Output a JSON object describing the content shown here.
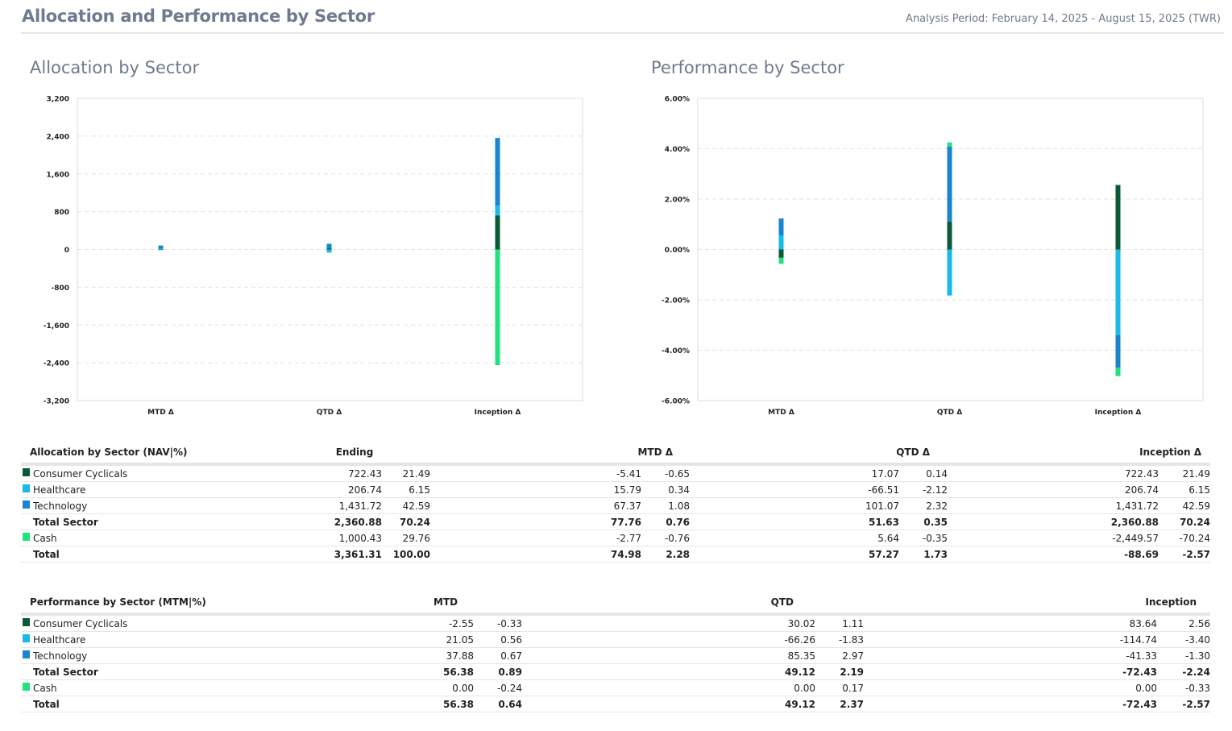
{
  "header": {
    "title": "Allocation and Performance by Sector",
    "analysis_period": "Analysis Period: February 14, 2025 - August 15, 2025 (TWR)"
  },
  "colors": {
    "consumer_cyclicals": "#0b5a37",
    "healthcare": "#1ab9ea",
    "technology": "#1a85cf",
    "cash": "#22e27d",
    "axis_text": "#222222",
    "grid": "#e2e2e2",
    "title": "#6f7a8e"
  },
  "chart_data": [
    {
      "id": "allocation",
      "type": "bar",
      "stacked": true,
      "title": "Allocation by Sector",
      "categories": [
        "MTD Δ",
        "QTD Δ",
        "Inception Δ"
      ],
      "yticks": [
        "3,200",
        "2,400",
        "1,600",
        "800",
        "0",
        "-800",
        "-1,600",
        "-2,400",
        "-3,200"
      ],
      "ylim": [
        -3200,
        3200
      ],
      "xlabel": "",
      "ylabel": "",
      "grid": true,
      "series": [
        {
          "name": "Consumer Cyclicals",
          "color": "#0b5a37",
          "values": [
            -5.41,
            17.07,
            722.43
          ]
        },
        {
          "name": "Healthcare",
          "color": "#1ab9ea",
          "values": [
            15.79,
            -66.51,
            206.74
          ]
        },
        {
          "name": "Technology",
          "color": "#1a85cf",
          "values": [
            67.37,
            101.07,
            1431.72
          ]
        },
        {
          "name": "Cash",
          "color": "#22e27d",
          "values": [
            -2.77,
            5.64,
            -2449.57
          ]
        }
      ]
    },
    {
      "id": "performance",
      "type": "bar",
      "stacked": true,
      "title": "Performance by Sector",
      "categories": [
        "MTD Δ",
        "QTD Δ",
        "Inception Δ"
      ],
      "yticks": [
        "6.00%",
        "4.00%",
        "2.00%",
        "0.00%",
        "-2.00%",
        "-4.00%",
        "-6.00%"
      ],
      "ylim": [
        -6,
        6
      ],
      "xlabel": "",
      "ylabel": "",
      "grid": true,
      "series": [
        {
          "name": "Consumer Cyclicals",
          "color": "#0b5a37",
          "values": [
            -0.33,
            1.11,
            2.56
          ]
        },
        {
          "name": "Healthcare",
          "color": "#1ab9ea",
          "values": [
            0.56,
            -1.83,
            -3.4
          ]
        },
        {
          "name": "Technology",
          "color": "#1a85cf",
          "values": [
            0.67,
            2.97,
            -1.3
          ]
        },
        {
          "name": "Cash",
          "color": "#22e27d",
          "values": [
            -0.24,
            0.17,
            -0.33
          ]
        }
      ]
    }
  ],
  "allocation_table": {
    "headers": [
      "Allocation by Sector (NAV|%)",
      "Ending",
      "MTD Δ",
      "QTD Δ",
      "Inception Δ"
    ],
    "rows": [
      {
        "label": "Consumer Cyclicals",
        "swatch": "#0b5a37",
        "bold": false,
        "cells": [
          "722.43",
          "21.49",
          "-5.41",
          "-0.65",
          "17.07",
          "0.14",
          "722.43",
          "21.49"
        ]
      },
      {
        "label": "Healthcare",
        "swatch": "#1ab9ea",
        "bold": false,
        "cells": [
          "206.74",
          "6.15",
          "15.79",
          "0.34",
          "-66.51",
          "-2.12",
          "206.74",
          "6.15"
        ]
      },
      {
        "label": "Technology",
        "swatch": "#1a85cf",
        "bold": false,
        "cells": [
          "1,431.72",
          "42.59",
          "67.37",
          "1.08",
          "101.07",
          "2.32",
          "1,431.72",
          "42.59"
        ]
      },
      {
        "label": "Total Sector",
        "swatch": "",
        "bold": true,
        "cells": [
          "2,360.88",
          "70.24",
          "77.76",
          "0.76",
          "51.63",
          "0.35",
          "2,360.88",
          "70.24"
        ]
      },
      {
        "label": "Cash",
        "swatch": "#22e27d",
        "bold": false,
        "cells": [
          "1,000.43",
          "29.76",
          "-2.77",
          "-0.76",
          "5.64",
          "-0.35",
          "-2,449.57",
          "-70.24"
        ]
      },
      {
        "label": "Total",
        "swatch": "",
        "bold": true,
        "cells": [
          "3,361.31",
          "100.00",
          "74.98",
          "2.28",
          "57.27",
          "1.73",
          "-88.69",
          "-2.57"
        ]
      }
    ]
  },
  "performance_table": {
    "headers": [
      "Performance by Sector (MTM|%)",
      "MTD",
      "QTD",
      "Inception"
    ],
    "rows": [
      {
        "label": "Consumer Cyclicals",
        "swatch": "#0b5a37",
        "bold": false,
        "cells": [
          "-2.55",
          "-0.33",
          "30.02",
          "1.11",
          "83.64",
          "2.56"
        ]
      },
      {
        "label": "Healthcare",
        "swatch": "#1ab9ea",
        "bold": false,
        "cells": [
          "21.05",
          "0.56",
          "-66.26",
          "-1.83",
          "-114.74",
          "-3.40"
        ]
      },
      {
        "label": "Technology",
        "swatch": "#1a85cf",
        "bold": false,
        "cells": [
          "37.88",
          "0.67",
          "85.35",
          "2.97",
          "-41.33",
          "-1.30"
        ]
      },
      {
        "label": "Total Sector",
        "swatch": "",
        "bold": true,
        "cells": [
          "56.38",
          "0.89",
          "49.12",
          "2.19",
          "-72.43",
          "-2.24"
        ]
      },
      {
        "label": "Cash",
        "swatch": "#22e27d",
        "bold": false,
        "cells": [
          "0.00",
          "-0.24",
          "0.00",
          "0.17",
          "0.00",
          "-0.33"
        ]
      },
      {
        "label": "Total",
        "swatch": "",
        "bold": true,
        "cells": [
          "56.38",
          "0.64",
          "49.12",
          "2.37",
          "-72.43",
          "-2.57"
        ]
      }
    ]
  }
}
